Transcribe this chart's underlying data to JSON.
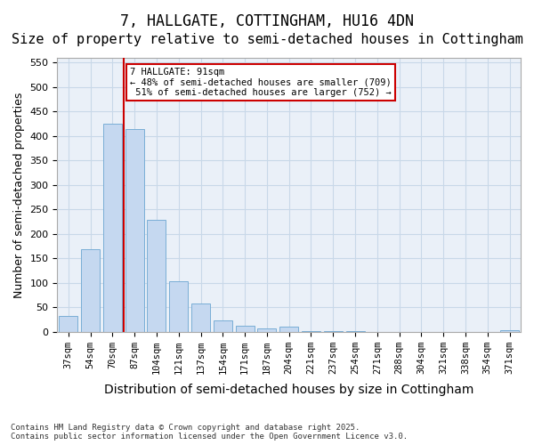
{
  "title": "7, HALLGATE, COTTINGHAM, HU16 4DN",
  "subtitle": "Size of property relative to semi-detached houses in Cottingham",
  "xlabel": "Distribution of semi-detached houses by size in Cottingham",
  "ylabel": "Number of semi-detached properties",
  "categories": [
    "37sqm",
    "54sqm",
    "70sqm",
    "87sqm",
    "104sqm",
    "121sqm",
    "137sqm",
    "154sqm",
    "171sqm",
    "187sqm",
    "204sqm",
    "221sqm",
    "237sqm",
    "254sqm",
    "271sqm",
    "288sqm",
    "304sqm",
    "321sqm",
    "338sqm",
    "354sqm",
    "371sqm"
  ],
  "values": [
    32,
    168,
    425,
    415,
    228,
    103,
    58,
    23,
    12,
    7,
    10,
    2,
    1,
    1,
    0,
    0,
    0,
    0,
    0,
    0,
    3
  ],
  "bar_color": "#c5d8f0",
  "bar_edge_color": "#7aaed6",
  "marker_bar_index": 3,
  "marker_value": 91,
  "marker_label": "7 HALLGATE: 91sqm",
  "pct_smaller": 48,
  "n_smaller": 709,
  "pct_larger": 51,
  "n_larger": 752,
  "vline_color": "#cc0000",
  "annotation_box_color": "#cc0000",
  "ylim": [
    0,
    560
  ],
  "yticks": [
    0,
    50,
    100,
    150,
    200,
    250,
    300,
    350,
    400,
    450,
    500,
    550
  ],
  "background_color": "#ffffff",
  "grid_color": "#c8d8e8",
  "footer": "Contains HM Land Registry data © Crown copyright and database right 2025.\nContains public sector information licensed under the Open Government Licence v3.0.",
  "title_fontsize": 12,
  "subtitle_fontsize": 11,
  "xlabel_fontsize": 10,
  "ylabel_fontsize": 9
}
